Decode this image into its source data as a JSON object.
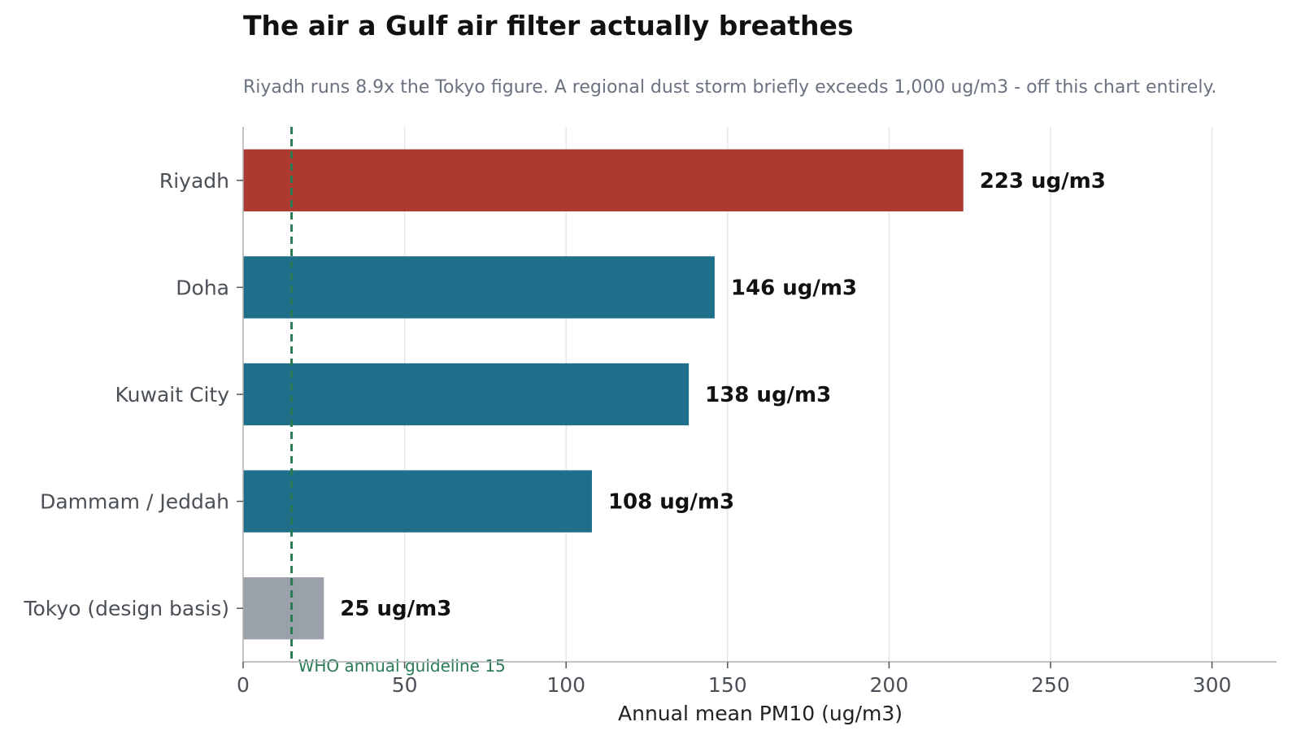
{
  "chart_data": {
    "type": "bar",
    "orientation": "horizontal",
    "title": "The air a Gulf air filter actually breathes",
    "subtitle": "Riyadh runs 8.9x the Tokyo figure. A regional dust storm briefly exceeds 1,000 ug/m3 - off this chart entirely.",
    "xlabel": "Annual mean PM10 (ug/m3)",
    "ylabel": "",
    "xlim": [
      0,
      320
    ],
    "xticks": [
      0,
      50,
      100,
      150,
      200,
      250,
      300
    ],
    "grid": "vertical",
    "legend": "none",
    "categories": [
      "Riyadh",
      "Doha",
      "Kuwait City",
      "Dammam / Jeddah",
      "Tokyo (design basis)"
    ],
    "values": [
      223,
      146,
      138,
      108,
      25
    ],
    "value_labels": [
      "223 ug/m3",
      "146 ug/m3",
      "138 ug/m3",
      "108 ug/m3",
      "25 ug/m3"
    ],
    "bar_colors": [
      "#ad3a2f",
      "#1f6f8b",
      "#1f6f8b",
      "#1f6f8b",
      "#9aa1ab"
    ],
    "reference_line": {
      "value": 15,
      "label": "WHO annual guideline 15",
      "color": "#2a7a55"
    }
  }
}
